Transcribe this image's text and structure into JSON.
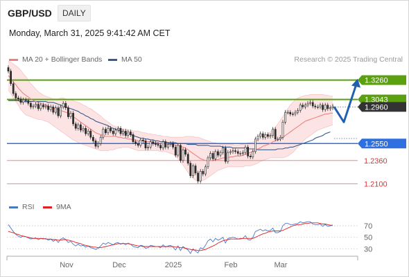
{
  "header": {
    "symbol": "GBP/USD",
    "timeframe": "DAILY",
    "datetime": "Monday, March 31, 2025 9:41:42 AM CET",
    "source": "Research © 2025 Trading Central"
  },
  "legend": {
    "ma20": "MA 20 + Bollinger Bands",
    "ma50": "MA 50",
    "rsi": "RSI",
    "rsi_ma": "9MA"
  },
  "colors": {
    "price_up": "#2e2e2e",
    "ma20": "#f08080",
    "bands": "#fde4e4",
    "ma50": "#3a5a8c",
    "resistance": "#5aa00f",
    "support_main": "#2f6fe0",
    "support_minor": "#e07a7a",
    "arrow": "#2060b0",
    "rsi": "#4a78c8",
    "rsi_ma": "#e02020"
  },
  "levels": [
    {
      "value": 1.326,
      "label": "1.3260",
      "kind": "resistance"
    },
    {
      "value": 1.3043,
      "label": "1.3043",
      "kind": "resistance"
    },
    {
      "value": 1.296,
      "label": "1.2960",
      "kind": "last"
    },
    {
      "value": 1.255,
      "label": "1.2550",
      "kind": "pivot"
    },
    {
      "value": 1.236,
      "label": "1.2360",
      "kind": "support"
    },
    {
      "value": 1.21,
      "label": "1.2100",
      "kind": "support"
    }
  ],
  "chart_data": [
    {
      "type": "candlestick",
      "ylim": [
        1.194,
        1.342
      ],
      "x_ticks": [
        "Nov",
        "Dec",
        "2025",
        "Feb",
        "Mar"
      ],
      "series": [
        {
          "name": "GBP/USD",
          "close": [
            1.336,
            1.322,
            1.311,
            1.306,
            1.305,
            1.301,
            1.304,
            1.303,
            1.3,
            1.296,
            1.297,
            1.299,
            1.294,
            1.298,
            1.296,
            1.297,
            1.293,
            1.296,
            1.29,
            1.295,
            1.286,
            1.296,
            1.3,
            1.295,
            1.285,
            1.289,
            1.277,
            1.272,
            1.276,
            1.27,
            1.272,
            1.266,
            1.269,
            1.262,
            1.258,
            1.252,
            1.255,
            1.262,
            1.271,
            1.267,
            1.272,
            1.269,
            1.266,
            1.27,
            1.272,
            1.266,
            1.269,
            1.264,
            1.268,
            1.265,
            1.257,
            1.255,
            1.253,
            1.259,
            1.258,
            1.25,
            1.251,
            1.257,
            1.255,
            1.254,
            1.253,
            1.25,
            1.257,
            1.251,
            1.254,
            1.255,
            1.251,
            1.242,
            1.253,
            1.236,
            1.248,
            1.243,
            1.233,
            1.219,
            1.23,
            1.222,
            1.213,
            1.224,
            1.221,
            1.229,
            1.239,
            1.244,
            1.238,
            1.246,
            1.242,
            1.245,
            1.25,
            1.235,
            1.245,
            1.246,
            1.247,
            1.246,
            1.244,
            1.244,
            1.245,
            1.251,
            1.241,
            1.24,
            1.246,
            1.26,
            1.263,
            1.266,
            1.262,
            1.265,
            1.263,
            1.264,
            1.271,
            1.26,
            1.26,
            1.262,
            1.279,
            1.29,
            1.29,
            1.288,
            1.288,
            1.29,
            1.292,
            1.298,
            1.296,
            1.298,
            1.3,
            1.301,
            1.297,
            1.296,
            1.296,
            1.298,
            1.293,
            1.298,
            1.294,
            1.295,
            1.297
          ]
        },
        {
          "name": "MA 20",
          "values": [
            1.331,
            1.328,
            1.324,
            1.321,
            1.317,
            1.314,
            1.311,
            1.309,
            1.307,
            1.305,
            1.303,
            1.302,
            1.301,
            1.3,
            1.299,
            1.298,
            1.297,
            1.296,
            1.295,
            1.294,
            1.293,
            1.292,
            1.291,
            1.29,
            1.289,
            1.287,
            1.285,
            1.283,
            1.281,
            1.279,
            1.277,
            1.275,
            1.273,
            1.271,
            1.269,
            1.267,
            1.266,
            1.265,
            1.264,
            1.263,
            1.263,
            1.263,
            1.263,
            1.263,
            1.262,
            1.262,
            1.261,
            1.261,
            1.26,
            1.26,
            1.259,
            1.259,
            1.258,
            1.258,
            1.258,
            1.257,
            1.257,
            1.257,
            1.256,
            1.256,
            1.256,
            1.255,
            1.255,
            1.255,
            1.255,
            1.254,
            1.254,
            1.253,
            1.253,
            1.252,
            1.251,
            1.25,
            1.248,
            1.246,
            1.244,
            1.242,
            1.24,
            1.238,
            1.237,
            1.236,
            1.236,
            1.236,
            1.236,
            1.237,
            1.237,
            1.238,
            1.239,
            1.239,
            1.239,
            1.24,
            1.24,
            1.241,
            1.241,
            1.241,
            1.242,
            1.243,
            1.244,
            1.245,
            1.246,
            1.248,
            1.249,
            1.25,
            1.252,
            1.253,
            1.254,
            1.255,
            1.257,
            1.258,
            1.259,
            1.26,
            1.262,
            1.264,
            1.266,
            1.268,
            1.27,
            1.272,
            1.274,
            1.276,
            1.278,
            1.28,
            1.281,
            1.282,
            1.283,
            1.284,
            1.285,
            1.286,
            1.287,
            1.288,
            1.288,
            1.289,
            1.289
          ]
        },
        {
          "name": "MA 50",
          "values": [
            1.303,
            1.303,
            1.303,
            1.303,
            1.303,
            1.302,
            1.302,
            1.302,
            1.302,
            1.302,
            1.302,
            1.302,
            1.302,
            1.302,
            1.302,
            1.302,
            1.301,
            1.301,
            1.301,
            1.3,
            1.299,
            1.298,
            1.297,
            1.296,
            1.295,
            1.294,
            1.293,
            1.292,
            1.291,
            1.289,
            1.288,
            1.286,
            1.285,
            1.283,
            1.282,
            1.28,
            1.279,
            1.278,
            1.277,
            1.276,
            1.275,
            1.273,
            1.272,
            1.271,
            1.27,
            1.269,
            1.268,
            1.267,
            1.266,
            1.265,
            1.264,
            1.263,
            1.262,
            1.261,
            1.261,
            1.26,
            1.26,
            1.259,
            1.259,
            1.258,
            1.258,
            1.257,
            1.257,
            1.257,
            1.256,
            1.256,
            1.256,
            1.256,
            1.255,
            1.255,
            1.255,
            1.255,
            1.254,
            1.254,
            1.254,
            1.254,
            1.253,
            1.253,
            1.253,
            1.253,
            1.253,
            1.252,
            1.252,
            1.252,
            1.252,
            1.252,
            1.251,
            1.251,
            1.251,
            1.251,
            1.25,
            1.25,
            1.25,
            1.25,
            1.25,
            1.25,
            1.249,
            1.249,
            1.249,
            1.249,
            1.248,
            1.248,
            1.248,
            1.248,
            1.248,
            1.248,
            1.248,
            1.248,
            1.249,
            1.249,
            1.249,
            1.25,
            1.25,
            1.251,
            1.251,
            1.252,
            1.253,
            1.254,
            1.255,
            1.256,
            1.257,
            1.258,
            1.259,
            1.261,
            1.262,
            1.263,
            1.264,
            1.266,
            1.267,
            1.268
          ]
        },
        {
          "name": "Bollinger upper",
          "values": [
            1.347,
            1.346,
            1.344,
            1.342,
            1.34,
            1.337,
            1.333,
            1.33,
            1.326,
            1.322,
            1.319,
            1.316,
            1.313,
            1.311,
            1.309,
            1.308,
            1.307,
            1.306,
            1.305,
            1.305,
            1.305,
            1.306,
            1.306,
            1.305,
            1.304,
            1.304,
            1.303,
            1.302,
            1.301,
            1.3,
            1.298,
            1.297,
            1.295,
            1.294,
            1.292,
            1.29,
            1.288,
            1.286,
            1.283,
            1.281,
            1.279,
            1.277,
            1.275,
            1.274,
            1.273,
            1.272,
            1.271,
            1.271,
            1.27,
            1.27,
            1.269,
            1.269,
            1.269,
            1.268,
            1.267,
            1.267,
            1.266,
            1.266,
            1.265,
            1.265,
            1.264,
            1.264,
            1.263,
            1.263,
            1.263,
            1.262,
            1.262,
            1.262,
            1.262,
            1.262,
            1.262,
            1.263,
            1.263,
            1.263,
            1.263,
            1.262,
            1.262,
            1.261,
            1.26,
            1.259,
            1.258,
            1.257,
            1.256,
            1.256,
            1.255,
            1.254,
            1.254,
            1.254,
            1.254,
            1.254,
            1.254,
            1.253,
            1.253,
            1.254,
            1.254,
            1.255,
            1.256,
            1.256,
            1.257,
            1.258,
            1.259,
            1.26,
            1.262,
            1.264,
            1.266,
            1.268,
            1.271,
            1.273,
            1.277,
            1.281,
            1.285,
            1.29,
            1.294,
            1.298,
            1.301,
            1.304,
            1.306,
            1.307,
            1.308,
            1.309,
            1.309,
            1.31,
            1.31,
            1.31,
            1.31,
            1.31,
            1.31,
            1.309,
            1.309,
            1.308,
            1.308
          ]
        },
        {
          "name": "Bollinger lower",
          "values": [
            1.315,
            1.311,
            1.306,
            1.302,
            1.298,
            1.293,
            1.29,
            1.287,
            1.286,
            1.285,
            1.284,
            1.283,
            1.282,
            1.282,
            1.281,
            1.28,
            1.279,
            1.277,
            1.275,
            1.273,
            1.271,
            1.269,
            1.267,
            1.265,
            1.263,
            1.261,
            1.259,
            1.258,
            1.256,
            1.255,
            1.254,
            1.253,
            1.252,
            1.251,
            1.25,
            1.249,
            1.248,
            1.247,
            1.247,
            1.247,
            1.247,
            1.248,
            1.248,
            1.249,
            1.25,
            1.25,
            1.251,
            1.251,
            1.251,
            1.25,
            1.249,
            1.248,
            1.247,
            1.247,
            1.247,
            1.247,
            1.247,
            1.247,
            1.247,
            1.247,
            1.247,
            1.246,
            1.246,
            1.246,
            1.245,
            1.244,
            1.243,
            1.241,
            1.238,
            1.235,
            1.231,
            1.227,
            1.223,
            1.219,
            1.216,
            1.214,
            1.213,
            1.213,
            1.214,
            1.215,
            1.217,
            1.219,
            1.221,
            1.223,
            1.225,
            1.226,
            1.227,
            1.228,
            1.229,
            1.229,
            1.229,
            1.229,
            1.229,
            1.229,
            1.229,
            1.23,
            1.23,
            1.23,
            1.231,
            1.232,
            1.233,
            1.235,
            1.236,
            1.237,
            1.238,
            1.239,
            1.239,
            1.239,
            1.239,
            1.239,
            1.239,
            1.24,
            1.241,
            1.243,
            1.245,
            1.248,
            1.251,
            1.254,
            1.257,
            1.26,
            1.262,
            1.264,
            1.266,
            1.268,
            1.27,
            1.271,
            1.272,
            1.273,
            1.274,
            1.275,
            1.276
          ]
        }
      ],
      "forecast": [
        [
          1.296,
          1.279
        ],
        [
          1.279,
          1.326
        ]
      ]
    },
    {
      "type": "line",
      "title": "RSI",
      "ylim": [
        22,
        82
      ],
      "y_ticks": [
        70,
        50,
        30
      ],
      "series": [
        {
          "name": "RSI",
          "values": [
            72,
            66,
            60,
            55,
            52,
            50,
            52,
            51,
            49,
            47,
            48,
            49,
            46,
            48,
            47,
            48,
            45,
            47,
            43,
            46,
            41,
            47,
            49,
            46,
            41,
            43,
            38,
            35,
            38,
            35,
            36,
            33,
            35,
            32,
            31,
            29,
            31,
            35,
            40,
            38,
            41,
            39,
            37,
            40,
            41,
            38,
            40,
            37,
            40,
            38,
            34,
            33,
            32,
            36,
            35,
            31,
            32,
            36,
            35,
            34,
            34,
            32,
            37,
            33,
            35,
            36,
            33,
            28,
            35,
            27,
            34,
            31,
            28,
            22,
            30,
            26,
            23,
            32,
            30,
            36,
            44,
            47,
            42,
            48,
            45,
            47,
            50,
            40,
            48,
            49,
            50,
            49,
            47,
            47,
            48,
            53,
            46,
            45,
            50,
            60,
            62,
            64,
            61,
            63,
            61,
            62,
            66,
            58,
            58,
            60,
            70,
            74,
            74,
            72,
            72,
            73,
            74,
            77,
            75,
            76,
            77,
            77,
            73,
            72,
            72,
            73,
            69,
            72,
            69,
            70,
            71
          ]
        },
        {
          "name": "9MA",
          "values": [
            60,
            59,
            58,
            56,
            55,
            53,
            52,
            51,
            50,
            49,
            48,
            48,
            48,
            48,
            48,
            47,
            47,
            47,
            46,
            46,
            45,
            45,
            46,
            46,
            45,
            44,
            43,
            41,
            40,
            39,
            37,
            36,
            35,
            34,
            33,
            33,
            32,
            32,
            33,
            34,
            35,
            36,
            37,
            38,
            39,
            39,
            39,
            39,
            39,
            38,
            37,
            36,
            35,
            35,
            34,
            34,
            34,
            34,
            34,
            34,
            34,
            34,
            34,
            34,
            34,
            34,
            34,
            33,
            33,
            32,
            32,
            31,
            30,
            29,
            28,
            28,
            27,
            27,
            28,
            29,
            31,
            33,
            35,
            37,
            40,
            42,
            44,
            45,
            46,
            47,
            47,
            47,
            47,
            48,
            48,
            48,
            48,
            48,
            48,
            50,
            52,
            54,
            56,
            57,
            59,
            60,
            61,
            61,
            61,
            61,
            62,
            64,
            66,
            68,
            70,
            71,
            72,
            72,
            73,
            74,
            74,
            75,
            75,
            75,
            75,
            74,
            73,
            73,
            72,
            71,
            71
          ]
        }
      ]
    }
  ]
}
